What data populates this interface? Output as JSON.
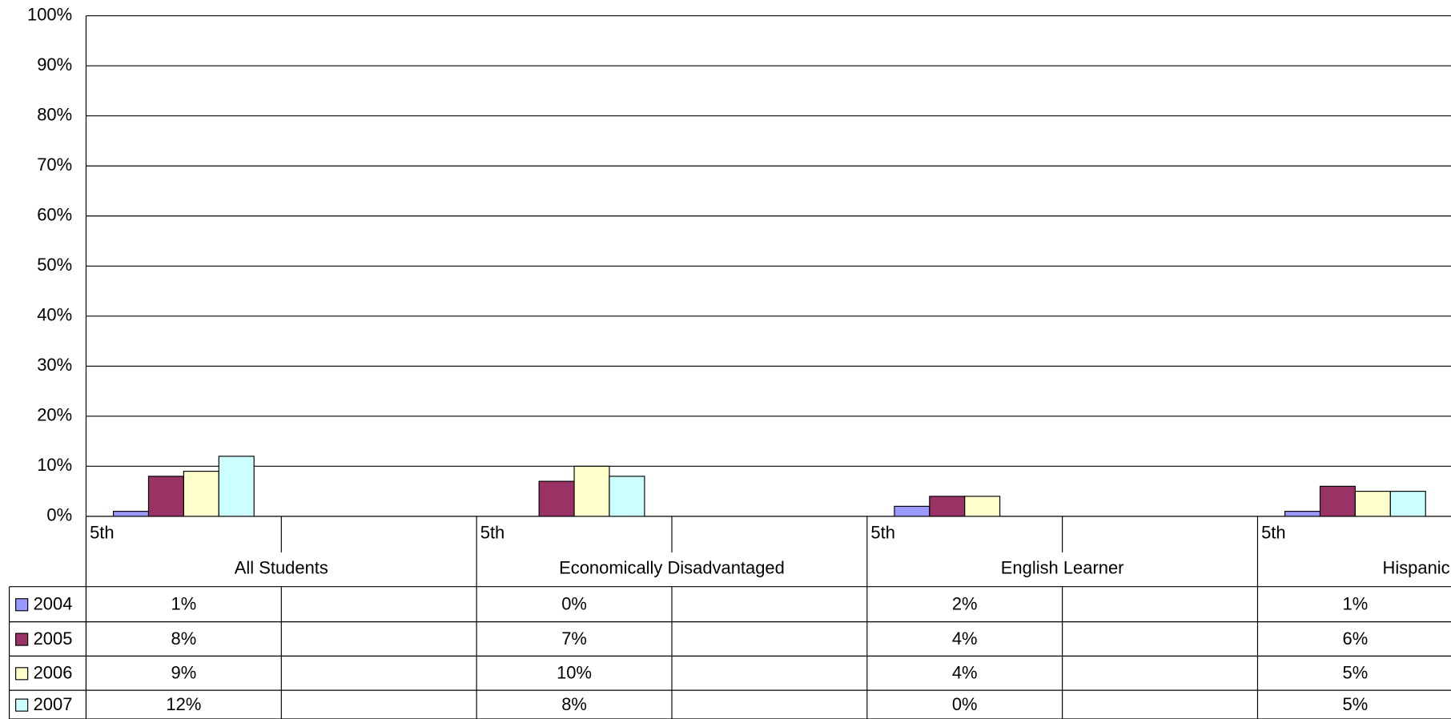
{
  "chart_data": {
    "type": "bar",
    "categories": [
      "5th",
      null,
      "5th",
      null,
      "5th",
      null,
      "5th",
      null
    ],
    "groups": [
      "All Students",
      "Economically Disadvantaged",
      "English Learner",
      "Hispanic or Latino"
    ],
    "series": [
      {
        "name": "2004",
        "color": "#9999ff",
        "values": [
          1,
          null,
          0,
          null,
          2,
          null,
          1,
          null
        ],
        "value_labels": [
          "1%",
          null,
          "0%",
          null,
          "2%",
          null,
          "1%",
          null
        ]
      },
      {
        "name": "2005",
        "color": "#993366",
        "values": [
          8,
          null,
          7,
          null,
          4,
          null,
          6,
          null
        ],
        "value_labels": [
          "8%",
          null,
          "7%",
          null,
          "4%",
          null,
          "6%",
          null
        ]
      },
      {
        "name": "2006",
        "color": "#ffffcc",
        "values": [
          9,
          null,
          10,
          null,
          4,
          null,
          5,
          null
        ],
        "value_labels": [
          "9%",
          null,
          "10%",
          null,
          "4%",
          null,
          "5%",
          null
        ]
      },
      {
        "name": "2007",
        "color": "#ccffff",
        "values": [
          12,
          null,
          8,
          null,
          0,
          null,
          5,
          null
        ],
        "value_labels": [
          "12%",
          null,
          "8%",
          null,
          "0%",
          null,
          "5%",
          null
        ]
      }
    ],
    "ylim": [
      0,
      100
    ],
    "yticks": [
      {
        "value": 0,
        "label": "0%"
      },
      {
        "value": 10,
        "label": "10%"
      },
      {
        "value": 20,
        "label": "20%"
      },
      {
        "value": 30,
        "label": "30%"
      },
      {
        "value": 40,
        "label": "40%"
      },
      {
        "value": 50,
        "label": "50%"
      },
      {
        "value": 60,
        "label": "60%"
      },
      {
        "value": 70,
        "label": "70%"
      },
      {
        "value": 80,
        "label": "80%"
      },
      {
        "value": 90,
        "label": "90%"
      },
      {
        "value": 100,
        "label": "100%"
      }
    ],
    "grid": true
  }
}
